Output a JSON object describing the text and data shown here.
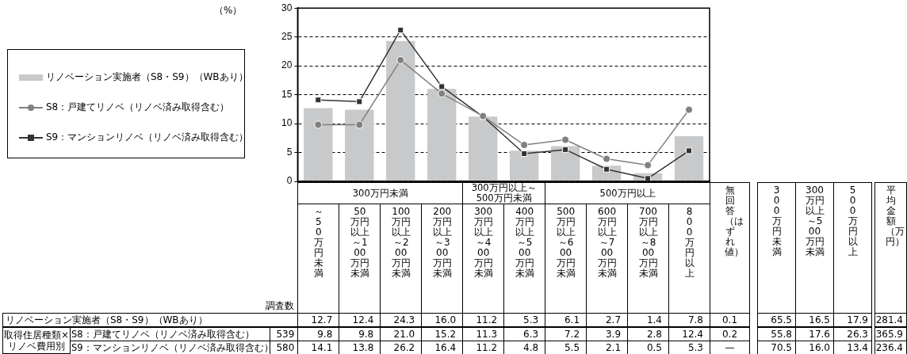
{
  "chart_data": {
    "type": "bar",
    "categories": [
      "～50万円未満",
      "50万円以上～100万円未満",
      "100万円以上～200万円未満",
      "200万円以上～300万円未満",
      "300万円以上～400万円未満",
      "400万円以上～500万円未満",
      "500万円以上～600万円未満",
      "600万円以上～700万円未満",
      "700万円以上～800万円未満",
      "800万円以上"
    ],
    "series": [
      {
        "name": "リノベーション実施者（S8・S9）（WBあり）",
        "color": "#c8c9cb",
        "values": [
          12.7,
          12.4,
          24.3,
          16.0,
          11.2,
          5.3,
          6.1,
          2.7,
          1.4,
          7.8
        ],
        "value_labels": [
          "12.7",
          "12.4",
          "24.3",
          "16.0",
          "11.2",
          "5.3",
          "6.1",
          "2.7",
          "1.4",
          "7.8"
        ]
      },
      {
        "name": "S8：戸建てリノベ（リノベ済み取得含む）",
        "type": "line",
        "color": "#808080",
        "marker": "circle",
        "values": [
          9.8,
          9.8,
          21.0,
          15.2,
          11.3,
          6.3,
          7.2,
          3.9,
          2.8,
          12.4
        ],
        "value_labels": [
          "9.8",
          "9.8",
          "21.0",
          "15.2",
          "11.3",
          "6.3",
          "7.2",
          "3.9",
          "2.8",
          "12.4"
        ]
      },
      {
        "name": "S9：マンションリノベ（リノベ済み取得含む）",
        "type": "line",
        "color": "#333333",
        "marker": "square",
        "values": [
          14.1,
          13.8,
          26.2,
          16.4,
          11.2,
          4.8,
          5.5,
          2.1,
          0.5,
          5.3
        ],
        "value_labels": [
          "14.1",
          "13.8",
          "26.2",
          "16.4",
          "11.2",
          "4.8",
          "5.5",
          "2.1",
          "0.5",
          "5.3"
        ]
      }
    ],
    "ylim": [
      0,
      30
    ],
    "yticks": [
      0,
      5,
      10,
      15,
      20,
      25,
      30
    ],
    "grid": "y",
    "legend": "left",
    "annotations": [
      "（%）",
      "300万円未満",
      "300万円以上～500万円未満",
      "500万円以上",
      "調査数",
      "取得住居種類×リノベ費用別",
      "539",
      "580",
      "無回答（はずれ値）",
      "300万円未満",
      "300万円以上～500万円未満",
      "500万円以上",
      "平均金額（万円）",
      "0.1",
      "65.5",
      "16.5",
      "17.9",
      "281.4",
      "0.2",
      "55.8",
      "17.6",
      "26.3",
      "365.9",
      "—",
      "70.5",
      "16.0",
      "13.4",
      "236.4"
    ]
  }
}
